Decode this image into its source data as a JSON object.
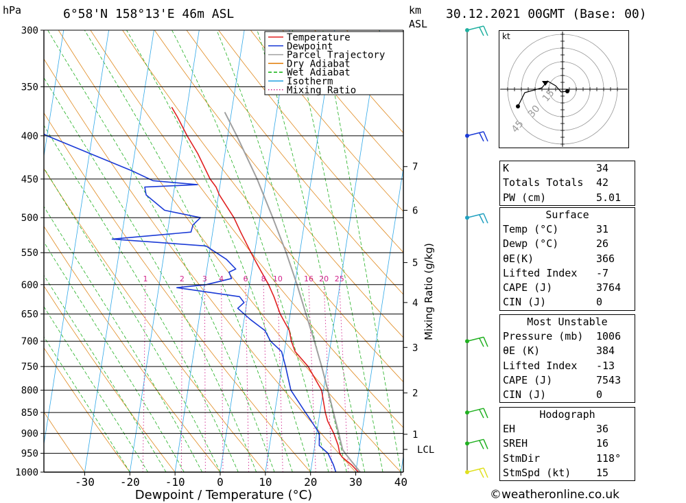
{
  "header": {
    "unit_left": "hPa",
    "location": "6°58'N 158°13'E 46m ASL",
    "unit_km": "km",
    "unit_asl": "ASL",
    "datetime": "30.12.2021 00GMT (Base: 00)"
  },
  "chart_data": {
    "type": "line",
    "title": "",
    "xlabel": "Dewpoint / Temperature (°C)",
    "ylabel": "hPa",
    "secondary_ylabel": "Mixing Ratio (g/kg)",
    "x_ticks": [
      -30,
      -20,
      -10,
      0,
      10,
      20,
      30,
      40
    ],
    "xlim": [
      -40,
      40
    ],
    "ylim": [
      1000,
      300
    ],
    "y_scale": "log",
    "pressure_levels": [
      300,
      350,
      400,
      450,
      500,
      550,
      600,
      650,
      700,
      750,
      800,
      850,
      900,
      950,
      1000
    ],
    "km_ticks": [
      {
        "label": "7",
        "p": 435
      },
      {
        "label": "6",
        "p": 490
      },
      {
        "label": "5",
        "p": 565
      },
      {
        "label": "4",
        "p": 630
      },
      {
        "label": "3",
        "p": 712
      },
      {
        "label": "2",
        "p": 806
      },
      {
        "label": "1",
        "p": 902
      },
      {
        "label": "LCL",
        "p": 940
      }
    ],
    "mixing_ratio_labels": [
      "1",
      "2",
      "3",
      "4",
      "6",
      "8",
      "10",
      "16",
      "20",
      "25"
    ],
    "mixing_ratio_values": [
      1,
      2,
      3,
      4,
      6,
      8,
      10,
      16,
      20,
      25
    ],
    "legend": {
      "placement": "top",
      "entries": [
        {
          "name": "Temperature",
          "color": "#e02020",
          "style": "solid"
        },
        {
          "name": "Dewpoint",
          "color": "#1a3ad6",
          "style": "solid"
        },
        {
          "name": "Parcel Trajectory",
          "color": "#a0a0a0",
          "style": "solid"
        },
        {
          "name": "Dry Adiabat",
          "color": "#e07800",
          "style": "solid"
        },
        {
          "name": "Wet Adiabat",
          "color": "#10b010",
          "style": "dashed"
        },
        {
          "name": "Isotherm",
          "color": "#20a0e0",
          "style": "solid"
        },
        {
          "name": "Mixing Ratio",
          "color": "#d0208a",
          "style": "dotted"
        }
      ]
    },
    "series": [
      {
        "name": "Temperature",
        "color": "#e02020",
        "points": [
          [
            1000,
            30.6
          ],
          [
            980,
            28.8
          ],
          [
            960,
            26.5
          ],
          [
            950,
            25.8
          ],
          [
            930,
            25.2
          ],
          [
            900,
            23.8
          ],
          [
            870,
            22.0
          ],
          [
            850,
            21.2
          ],
          [
            800,
            19.6
          ],
          [
            750,
            15.8
          ],
          [
            720,
            12.4
          ],
          [
            700,
            11.2
          ],
          [
            680,
            10.4
          ],
          [
            650,
            7.8
          ],
          [
            620,
            5.8
          ],
          [
            600,
            4.2
          ],
          [
            570,
            1.2
          ],
          [
            550,
            -0.8
          ],
          [
            520,
            -3.8
          ],
          [
            500,
            -5.8
          ],
          [
            470,
            -9.8
          ],
          [
            460,
            -10.8
          ],
          [
            450,
            -12.4
          ],
          [
            420,
            -16.0
          ],
          [
            400,
            -19.0
          ],
          [
            380,
            -21.8
          ],
          [
            370,
            -23.4
          ]
        ]
      },
      {
        "name": "Dewpoint",
        "color": "#1a3ad6",
        "points": [
          [
            1000,
            25.6
          ],
          [
            980,
            24.8
          ],
          [
            950,
            23.2
          ],
          [
            930,
            21.0
          ],
          [
            900,
            20.6
          ],
          [
            870,
            18.4
          ],
          [
            850,
            16.8
          ],
          [
            800,
            12.8
          ],
          [
            750,
            10.8
          ],
          [
            720,
            9.4
          ],
          [
            700,
            6.6
          ],
          [
            680,
            5.0
          ],
          [
            660,
            1.4
          ],
          [
            640,
            -1.8
          ],
          [
            630,
            -0.6
          ],
          [
            620,
            -1.8
          ],
          [
            605,
            -16.0
          ],
          [
            600,
            -9.6
          ],
          [
            590,
            -4.2
          ],
          [
            580,
            -5.0
          ],
          [
            575,
            -3.6
          ],
          [
            560,
            -6.0
          ],
          [
            540,
            -11.0
          ],
          [
            530,
            -32.0
          ],
          [
            520,
            -14.8
          ],
          [
            510,
            -14.6
          ],
          [
            500,
            -13.2
          ],
          [
            490,
            -21.4
          ],
          [
            470,
            -26.0
          ],
          [
            460,
            -26.6
          ],
          [
            457,
            -15.0
          ],
          [
            452,
            -25.0
          ],
          [
            440,
            -30.0
          ],
          [
            400,
            -50.0
          ],
          [
            390,
            -54.0
          ],
          [
            300,
            -76.0
          ]
        ]
      },
      {
        "name": "Parcel Trajectory",
        "color": "#a0a0a0",
        "points": [
          [
            1000,
            31.0
          ],
          [
            950,
            27.0
          ],
          [
            940,
            26.3
          ],
          [
            900,
            24.9
          ],
          [
            850,
            23.0
          ],
          [
            800,
            21.0
          ],
          [
            750,
            18.8
          ],
          [
            700,
            16.3
          ],
          [
            650,
            13.5
          ],
          [
            600,
            10.5
          ],
          [
            550,
            7.0
          ],
          [
            500,
            2.8
          ],
          [
            450,
            -2.0
          ],
          [
            400,
            -8.0
          ],
          [
            375,
            -11.5
          ]
        ]
      }
    ],
    "wind_barbs": [
      {
        "p": 300,
        "label": "",
        "color": "#20b0a0"
      },
      {
        "p": 400,
        "label": "",
        "color": "#1a3ad6"
      },
      {
        "p": 500,
        "label": "",
        "color": "#20a0c0"
      },
      {
        "p": 700,
        "label": "",
        "color": "#20b020"
      },
      {
        "p": 850,
        "label": "",
        "color": "#20b020"
      },
      {
        "p": 925,
        "label": "",
        "color": "#20b020"
      },
      {
        "p": 1000,
        "label": "",
        "color": "#e0e020"
      }
    ]
  },
  "hodograph": {
    "unit": "kt",
    "rings": [
      "15",
      "30",
      "45"
    ],
    "points": [
      [
        -65,
        25
      ],
      [
        -55,
        5
      ],
      [
        -30,
        -2
      ],
      [
        -22,
        -12
      ],
      [
        -10,
        -5
      ],
      [
        -2,
        4
      ],
      [
        7,
        3
      ]
    ]
  },
  "indices": {
    "rows": [
      {
        "label": "K",
        "value": "34"
      },
      {
        "label": "Totals Totals",
        "value": "42"
      },
      {
        "label": "PW (cm)",
        "value": "5.01"
      }
    ]
  },
  "surface": {
    "title": "Surface",
    "rows": [
      {
        "label": "Temp (°C)",
        "value": "31"
      },
      {
        "label": "Dewp (°C)",
        "value": "26"
      },
      {
        "label": "θE(K)",
        "value": "366"
      },
      {
        "label": "Lifted Index",
        "value": "-7"
      },
      {
        "label": "CAPE (J)",
        "value": "3764"
      },
      {
        "label": "CIN (J)",
        "value": "0"
      }
    ]
  },
  "most_unstable": {
    "title": "Most Unstable",
    "rows": [
      {
        "label": "Pressure (mb)",
        "value": "1006"
      },
      {
        "label": "θE (K)",
        "value": "384"
      },
      {
        "label": "Lifted Index",
        "value": "-13"
      },
      {
        "label": "CAPE (J)",
        "value": "7543"
      },
      {
        "label": "CIN (J)",
        "value": "0"
      }
    ]
  },
  "hodograph_stats": {
    "title": "Hodograph",
    "rows": [
      {
        "label": "EH",
        "value": "36"
      },
      {
        "label": "SREH",
        "value": "16"
      },
      {
        "label": "StmDir",
        "value": "118°"
      },
      {
        "label": "StmSpd (kt)",
        "value": "15"
      }
    ]
  },
  "footer": "©weatheronline.co.uk"
}
